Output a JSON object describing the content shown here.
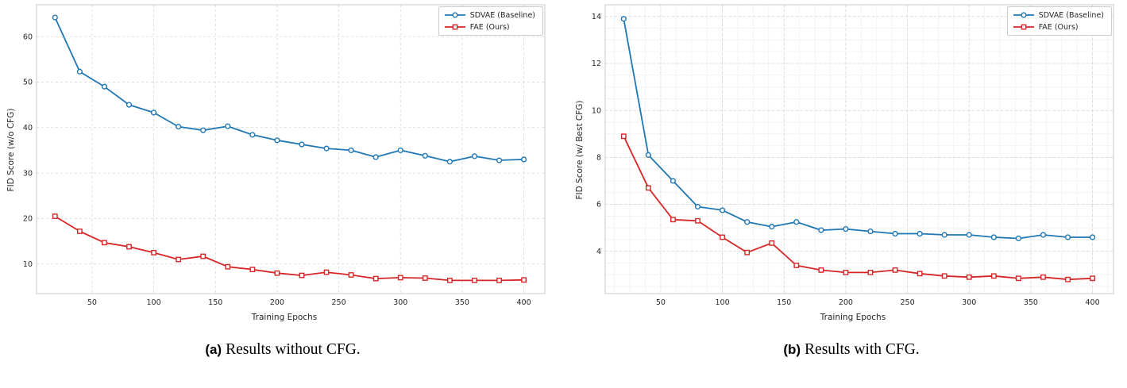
{
  "figure": {
    "panels": [
      {
        "caption_label": "(a)",
        "caption_text": "Results without CFG."
      },
      {
        "caption_label": "(b)",
        "caption_text": "Results with CFG."
      }
    ]
  },
  "colors": {
    "baseline": "#1f77b4",
    "ours": "#d62728"
  },
  "chart_data": [
    {
      "type": "line",
      "title": "",
      "xlabel": "Training Epochs",
      "ylabel": "FID Score (w/o CFG)",
      "legend_position": "upper right",
      "grid": true,
      "x": [
        20,
        40,
        60,
        80,
        100,
        120,
        140,
        160,
        180,
        200,
        220,
        240,
        260,
        280,
        300,
        320,
        340,
        360,
        380,
        400
      ],
      "xlim": [
        5,
        417
      ],
      "ylim": [
        3.5,
        67
      ],
      "xticks": [
        50,
        100,
        150,
        200,
        250,
        300,
        350,
        400
      ],
      "yticks": [
        10,
        20,
        30,
        40,
        50,
        60
      ],
      "series": [
        {
          "name": "SDVAE (Baseline)",
          "color": "#1f77b4",
          "marker": "circle",
          "values": [
            64.2,
            52.3,
            49.0,
            45.0,
            43.3,
            40.2,
            39.4,
            40.3,
            38.4,
            37.2,
            36.3,
            35.4,
            35.0,
            33.5,
            35.0,
            33.8,
            32.5,
            33.7,
            32.8,
            33.0
          ]
        },
        {
          "name": "FAE (Ours)",
          "color": "#d62728",
          "marker": "square",
          "values": [
            20.5,
            17.2,
            14.7,
            13.8,
            12.5,
            11.0,
            11.7,
            9.4,
            8.8,
            8.0,
            7.5,
            8.2,
            7.6,
            6.8,
            7.0,
            6.9,
            6.4,
            6.4,
            6.4,
            6.5
          ]
        }
      ]
    },
    {
      "type": "line",
      "title": "",
      "xlabel": "Training Epochs",
      "ylabel": "FID Score (w/ Best CFG)",
      "legend_position": "upper right",
      "grid": true,
      "minor_grid": {
        "x": 12.5,
        "y": 0.5
      },
      "x": [
        20,
        40,
        60,
        80,
        100,
        120,
        140,
        160,
        180,
        200,
        220,
        240,
        260,
        280,
        300,
        320,
        340,
        360,
        380,
        400
      ],
      "xlim": [
        5,
        417
      ],
      "ylim": [
        2.2,
        14.5
      ],
      "xticks": [
        50,
        100,
        150,
        200,
        250,
        300,
        350,
        400
      ],
      "yticks": [
        4,
        6,
        8,
        10,
        12,
        14
      ],
      "series": [
        {
          "name": "SDVAE (Baseline)",
          "color": "#1f77b4",
          "marker": "circle",
          "values": [
            13.9,
            8.1,
            7.0,
            5.9,
            5.75,
            5.25,
            5.05,
            5.25,
            4.9,
            4.95,
            4.85,
            4.75,
            4.75,
            4.7,
            4.7,
            4.6,
            4.55,
            4.7,
            4.6,
            4.6
          ]
        },
        {
          "name": "FAE (Ours)",
          "color": "#d62728",
          "marker": "square",
          "values": [
            8.9,
            6.7,
            5.35,
            5.3,
            4.6,
            3.95,
            4.35,
            3.4,
            3.2,
            3.1,
            3.1,
            3.2,
            3.05,
            2.95,
            2.9,
            2.95,
            2.85,
            2.9,
            2.8,
            2.85
          ]
        }
      ]
    }
  ]
}
